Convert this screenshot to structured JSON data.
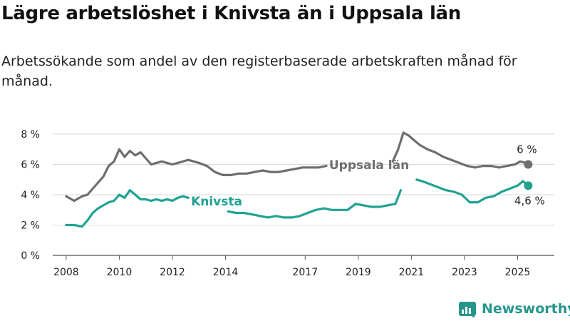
{
  "header": {
    "title": "Lägre arbetslöshet i Knivsta än i Uppsala län",
    "subtitle": "Arbetssökande som andel av den registerbaserade arbetskraften månad för månad."
  },
  "brand": {
    "name": "Newsworthy",
    "icon": "newsworthy-logo-icon"
  },
  "colors": {
    "uppsala": "#6e6e6e",
    "knivsta": "#20a291",
    "grid": "#d9d9d9",
    "brand": "#26968c"
  },
  "chart_data": {
    "type": "line",
    "title": "Lägre arbetslöshet i Knivsta än i Uppsala län",
    "subtitle": "Arbetssökande som andel av den registerbaserade arbetskraften månad för månad.",
    "xlabel": "",
    "ylabel": "",
    "ylim": [
      0,
      8
    ],
    "xlim": [
      2007.6,
      2025.9
    ],
    "grid": true,
    "legend": "inline labels",
    "y_ticks": [
      "0 %",
      "2 %",
      "4 %",
      "6 %",
      "8 %"
    ],
    "x_ticks": [
      "2008",
      "2010",
      "2012",
      "2014",
      "2017",
      "2019",
      "2021",
      "2023",
      "2025"
    ],
    "series": [
      {
        "name": "Uppsala län",
        "end_label": "6 %",
        "x": [
          2008.0,
          2008.3,
          2008.6,
          2008.8,
          2009.0,
          2009.2,
          2009.4,
          2009.6,
          2009.8,
          2010.0,
          2010.2,
          2010.4,
          2010.6,
          2010.8,
          2011.0,
          2011.2,
          2011.4,
          2011.6,
          2011.8,
          2012.0,
          2012.2,
          2012.4,
          2012.6,
          2012.8,
          2013.0,
          2013.3,
          2013.6,
          2013.9,
          2014.2,
          2014.5,
          2014.8,
          2015.1,
          2015.4,
          2015.7,
          2016.0,
          2016.3,
          2016.6,
          2016.9,
          2017.2,
          2017.5,
          2017.8,
          2020.3,
          2020.5,
          2020.7,
          2020.9,
          2021.1,
          2021.3,
          2021.6,
          2021.9,
          2022.2,
          2022.5,
          2022.8,
          2023.1,
          2023.4,
          2023.7,
          2024.0,
          2024.3,
          2024.6,
          2024.9,
          2025.1,
          2025.3,
          2025.4
        ],
        "y": [
          3.9,
          3.6,
          3.9,
          4.0,
          4.4,
          4.8,
          5.2,
          5.9,
          6.2,
          7.0,
          6.5,
          6.9,
          6.6,
          6.8,
          6.4,
          6.0,
          6.1,
          6.2,
          6.1,
          6.0,
          6.1,
          6.2,
          6.3,
          6.2,
          6.1,
          5.9,
          5.5,
          5.3,
          5.3,
          5.4,
          5.4,
          5.5,
          5.6,
          5.5,
          5.5,
          5.6,
          5.7,
          5.8,
          5.8,
          5.8,
          5.9,
          6.2,
          7.0,
          8.1,
          7.9,
          7.6,
          7.3,
          7.0,
          6.8,
          6.5,
          6.3,
          6.1,
          5.9,
          5.8,
          5.9,
          5.9,
          5.8,
          5.9,
          6.0,
          6.2,
          6.1,
          6.0
        ]
      },
      {
        "name": "Knivsta",
        "end_label": "4,6 %",
        "x": [
          2008.0,
          2008.3,
          2008.6,
          2008.8,
          2009.0,
          2009.2,
          2009.4,
          2009.6,
          2009.8,
          2010.0,
          2010.2,
          2010.4,
          2010.6,
          2010.8,
          2011.0,
          2011.2,
          2011.4,
          2011.6,
          2011.8,
          2012.0,
          2012.2,
          2012.4,
          2012.6,
          2014.1,
          2014.4,
          2014.7,
          2015.0,
          2015.3,
          2015.6,
          2015.9,
          2016.2,
          2016.5,
          2016.8,
          2017.1,
          2017.4,
          2017.7,
          2018.0,
          2018.3,
          2018.6,
          2018.9,
          2019.2,
          2019.5,
          2019.8,
          2020.1,
          2020.4,
          2020.6,
          2021.2,
          2021.4,
          2021.7,
          2022.0,
          2022.3,
          2022.6,
          2022.9,
          2023.2,
          2023.5,
          2023.8,
          2024.1,
          2024.4,
          2024.7,
          2025.0,
          2025.2,
          2025.4
        ],
        "y": [
          2.0,
          2.0,
          1.9,
          2.3,
          2.8,
          3.1,
          3.3,
          3.5,
          3.6,
          4.0,
          3.8,
          4.3,
          4.0,
          3.7,
          3.7,
          3.6,
          3.7,
          3.6,
          3.7,
          3.6,
          3.8,
          3.9,
          3.8,
          2.9,
          2.8,
          2.8,
          2.7,
          2.6,
          2.5,
          2.6,
          2.5,
          2.5,
          2.6,
          2.8,
          3.0,
          3.1,
          3.0,
          3.0,
          3.0,
          3.4,
          3.3,
          3.2,
          3.2,
          3.3,
          3.4,
          4.3,
          5.0,
          4.9,
          4.7,
          4.5,
          4.3,
          4.2,
          4.0,
          3.5,
          3.5,
          3.8,
          3.9,
          4.2,
          4.4,
          4.6,
          4.9,
          4.6
        ]
      }
    ]
  }
}
